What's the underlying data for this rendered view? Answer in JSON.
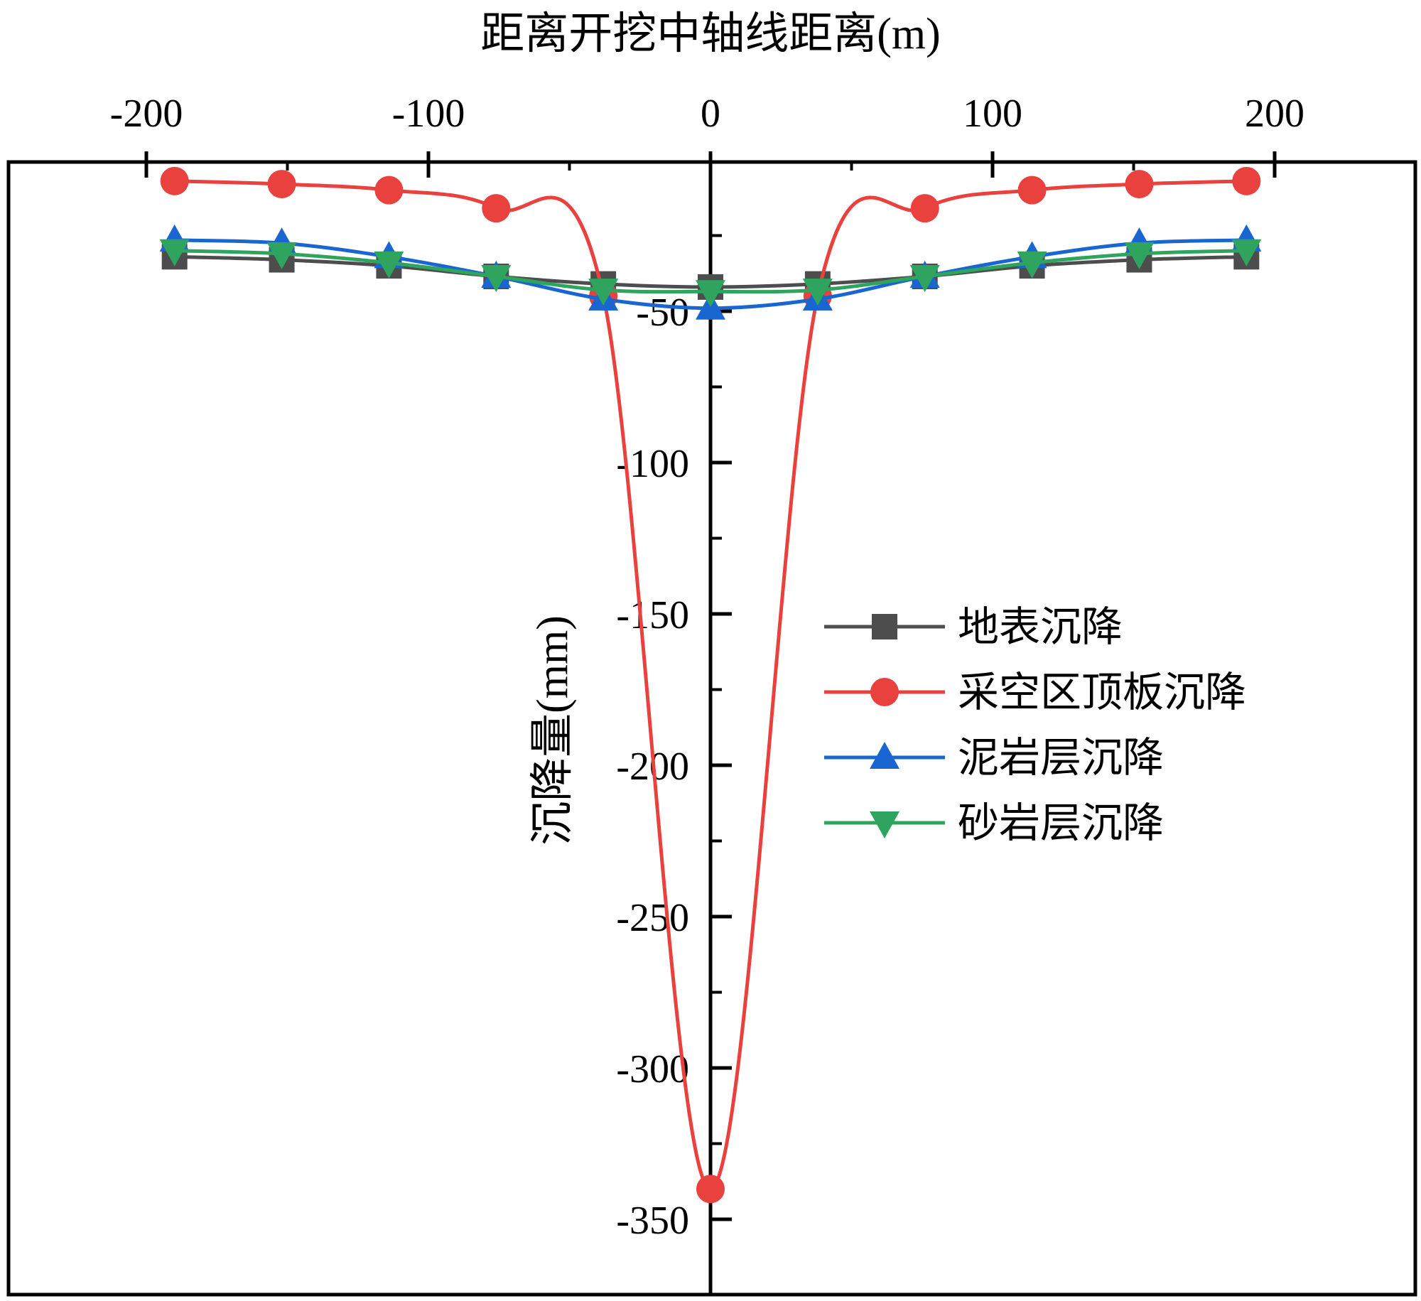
{
  "chart_data": {
    "type": "line",
    "xlabel": "距离开挖中轴线距离(m)",
    "ylabel": "沉降量(mm)",
    "xlim": [
      -200,
      250
    ],
    "x_axis_position": "top",
    "y_axis_position": "center (x=0)",
    "xticks": [
      -200,
      -100,
      0,
      100,
      200
    ],
    "xtick_labels": [
      "-200",
      "-100",
      "0",
      "100",
      "200"
    ],
    "ylim": [
      -362,
      0
    ],
    "yticks": [
      -50,
      -100,
      -150,
      -200,
      -250,
      -300,
      -350
    ],
    "ytick_labels": [
      "-50",
      "-100",
      "-150",
      "-200",
      "-250",
      "-300",
      "-350"
    ],
    "legend_position": "right-middle",
    "grid": false,
    "x": [
      -190,
      -152,
      -114,
      -76,
      -38,
      0,
      38,
      76,
      114,
      152,
      190
    ],
    "series": [
      {
        "name": "地表沉降",
        "color": "#4d4d4d",
        "marker": "square",
        "values": [
          -32,
          -33,
          -35,
          -38.5,
          -41,
          -42,
          -41,
          -38.5,
          -35,
          -33,
          -32
        ]
      },
      {
        "name": "采空区顶板沉降",
        "color": "#e8413e",
        "marker": "circle",
        "values": [
          -7,
          -8,
          -10,
          -16,
          -45,
          -340,
          -45,
          -16,
          -10,
          -8,
          -7
        ]
      },
      {
        "name": "泥岩层沉降",
        "color": "#1a66d1",
        "marker": "triangle-up",
        "values": [
          -26.5,
          -27.5,
          -32,
          -38.5,
          -46,
          -49,
          -46,
          -38.5,
          -32,
          -27.5,
          -26.5
        ]
      },
      {
        "name": "砂岩层沉降",
        "color": "#2fa45e",
        "marker": "triangle-down",
        "values": [
          -30,
          -31,
          -34,
          -38.5,
          -43,
          -43.5,
          -43,
          -38.5,
          -34,
          -31,
          -30
        ]
      }
    ]
  }
}
